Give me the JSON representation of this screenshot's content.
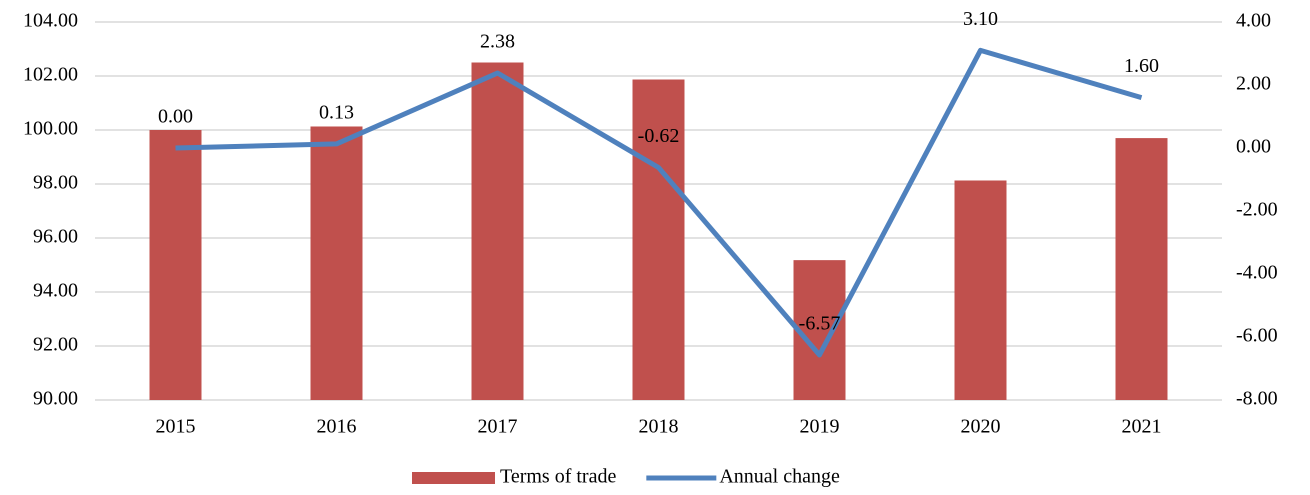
{
  "chart_data": {
    "type": "bar-line",
    "categories": [
      "2015",
      "2016",
      "2017",
      "2018",
      "2019",
      "2020",
      "2021"
    ],
    "series": [
      {
        "name": "Terms of trade",
        "type": "bar",
        "color": "#c0504d",
        "values": [
          100.0,
          100.13,
          102.5,
          101.87,
          95.18,
          98.13,
          99.7
        ]
      },
      {
        "name": "Annual change",
        "type": "line",
        "axis": "y2",
        "color": "#4f81bd",
        "values": [
          0.0,
          0.13,
          2.38,
          -0.62,
          -6.57,
          3.1,
          1.6
        ],
        "value_labels": [
          "0.00",
          "0.13",
          "2.38",
          "-0.62",
          "-6.57",
          "3.10",
          "1.60"
        ]
      }
    ],
    "ylim": [
      90,
      104
    ],
    "yticks": [
      {
        "value": 90,
        "label": "90.00"
      },
      {
        "value": 92,
        "label": "92.00"
      },
      {
        "value": 94,
        "label": "94.00"
      },
      {
        "value": 96,
        "label": "96.00"
      },
      {
        "value": 98,
        "label": "98.00"
      },
      {
        "value": 100,
        "label": "100.00"
      },
      {
        "value": 102,
        "label": "102.00"
      },
      {
        "value": 104,
        "label": "104.00"
      }
    ],
    "y2lim": [
      -8,
      4
    ],
    "y2ticks": [
      {
        "value": -8,
        "label": "-8.00"
      },
      {
        "value": -6,
        "label": "-6.00"
      },
      {
        "value": -4,
        "label": "-4.00"
      },
      {
        "value": -2,
        "label": "-2.00"
      },
      {
        "value": 0,
        "label": "0.00"
      },
      {
        "value": 2,
        "label": "2.00"
      },
      {
        "value": 4,
        "label": "4.00"
      }
    ],
    "grid": true,
    "legend": "bottom"
  }
}
